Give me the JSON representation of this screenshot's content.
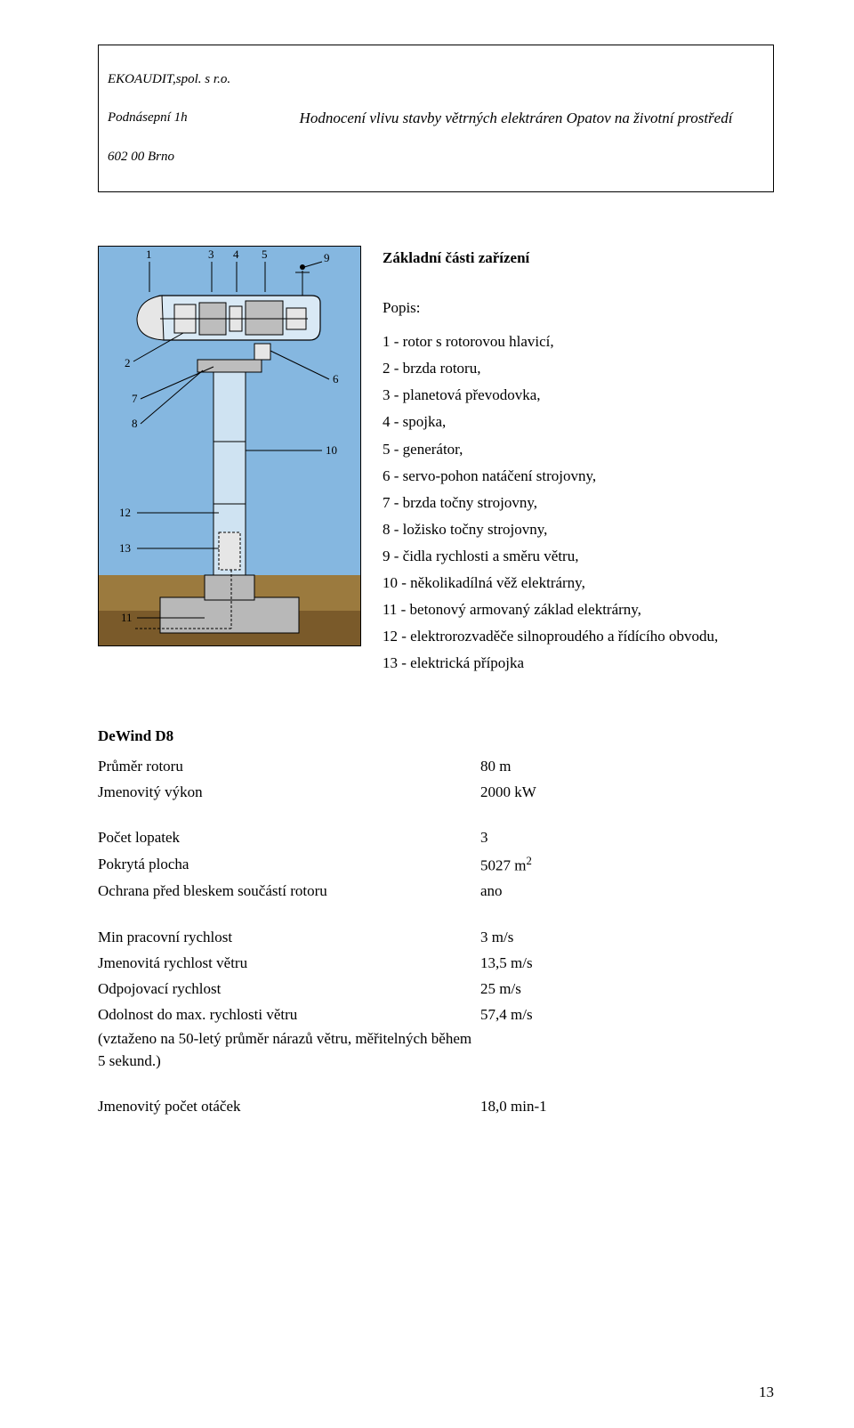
{
  "header": {
    "company": "EKOAUDIT,spol. s r.o.",
    "address1": "Podnásepní 1h",
    "address2": "602 00  Brno",
    "title": "Hodnocení vlivu stavby větrných elektráren Opatov na životní prostředí"
  },
  "section": {
    "title": "Základní části zařízení",
    "popis_label": "Popis:",
    "parts": [
      "1 - rotor s rotorovou hlavicí,",
      "2 - brzda rotoru,",
      "3 - planetová převodovka,",
      "4 - spojka,",
      "5 - generátor,",
      "6 - servo-pohon natáčení strojovny,",
      "7 - brzda točny strojovny,",
      "8 - ložisko točny strojovny,",
      "9 - čidla rychlosti a směru větru,",
      "10 - několikadílná věž elektrárny,",
      "11 - betonový armovaný základ elektrárny,",
      "12 - elektrorozvaděče silnoproudého a řídícího obvodu,",
      "13 - elektrická přípojka"
    ]
  },
  "diagram": {
    "colors": {
      "sky": "#85b7e0",
      "ground_top": "#9b7a3e",
      "ground_bottom": "#7a5a2a",
      "concrete": "#b8b8b8",
      "tower": "#cfe3f2",
      "nacelle": "#d9e9f5",
      "mech_light": "#e6e6e6",
      "mech_dark": "#bdbdbd",
      "line": "#000000"
    },
    "numbers": [
      "1",
      "2",
      "3",
      "4",
      "5",
      "6",
      "7",
      "8",
      "9",
      "10",
      "11",
      "12",
      "13"
    ]
  },
  "dewind": {
    "title": "DeWind D8",
    "block1": [
      {
        "label": "Průměr rotoru",
        "value": "80 m"
      },
      {
        "label": "Jmenovitý výkon",
        "value": "2000 kW"
      }
    ],
    "block2": [
      {
        "label": "Počet lopatek",
        "value": "3"
      },
      {
        "label": "Pokrytá plocha",
        "value_html": "5027 m",
        "sup": "2"
      },
      {
        "label": "Ochrana před bleskem součástí rotoru",
        "value": "ano"
      }
    ],
    "block3": [
      {
        "label": "Min pracovní rychlost",
        "value": "3 m/s"
      },
      {
        "label": "Jmenovitá rychlost větru",
        "value": "13,5 m/s"
      },
      {
        "label": "Odpojovací rychlost",
        "value": "25 m/s"
      },
      {
        "label": "Odolnost do max. rychlosti větru",
        "value": "57,4 m/s"
      }
    ],
    "note": "(vztaženo na 50-letý průměr nárazů větru, měřitelných během 5 sekund.)",
    "block4": [
      {
        "label": "Jmenovitý počet otáček",
        "value": "18,0 min-1"
      }
    ]
  },
  "page_number": "13"
}
